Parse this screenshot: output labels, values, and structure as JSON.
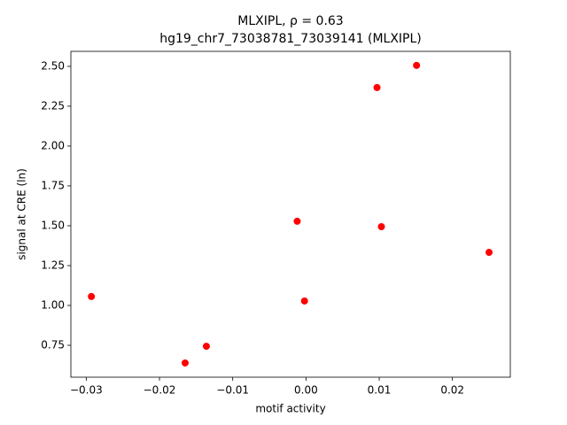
{
  "chart_data": {
    "type": "scatter",
    "title": "MLXIPL, ρ = 0.63",
    "subtitle": "hg19_chr7_73038781_73039141 (MLXIPL)",
    "x_label": "motif activity",
    "y_label": "signal at CRE (ln)",
    "color": "#ff0000",
    "x": [
      0.0151,
      0.0097,
      -0.0012,
      0.0103,
      0.025,
      -0.0293,
      -0.0002,
      -0.0136,
      -0.0165
    ],
    "values": [
      2.506,
      2.367,
      1.528,
      1.494,
      1.333,
      1.056,
      1.028,
      0.744,
      0.639
    ],
    "xlim": [
      -0.0321,
      0.0279
    ],
    "ylim": [
      0.55,
      2.594
    ],
    "xticks": [
      {
        "value": -0.03,
        "label": "−0.03"
      },
      {
        "value": -0.02,
        "label": "−0.02"
      },
      {
        "value": -0.01,
        "label": "−0.01"
      },
      {
        "value": 0,
        "label": "0.00"
      },
      0.01,
      0.02
    ],
    "yticks": [
      0.75,
      {
        "value": 1,
        "label": "1.00"
      },
      1.25,
      {
        "value": 1.5,
        "label": "1.50"
      },
      1.75,
      {
        "value": 2,
        "label": "2.00"
      },
      2.25,
      {
        "value": 2.5,
        "label": "2.50"
      }
    ]
  }
}
